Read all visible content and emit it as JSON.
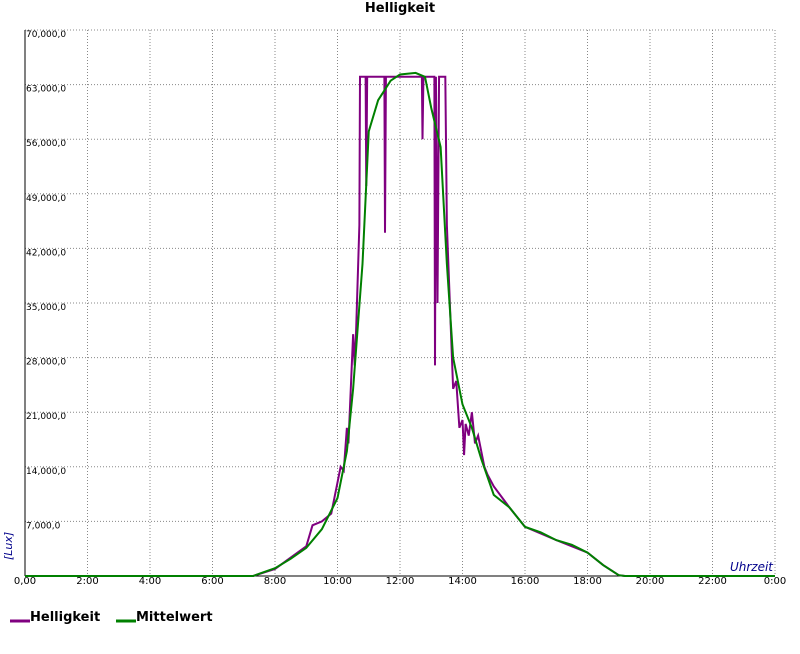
{
  "chart_data": {
    "type": "line",
    "title": "Helligkeit",
    "y_label": "[Lux]",
    "x_label": "Uhrzeit",
    "xlim": [
      0,
      24
    ],
    "ylim": [
      0,
      70000
    ],
    "grid": true,
    "xticks": [
      {
        "value": 0,
        "label": "0,00"
      },
      {
        "value": 2,
        "label": "2:00"
      },
      {
        "value": 4,
        "label": "4:00"
      },
      {
        "value": 6,
        "label": "6:00"
      },
      {
        "value": 8,
        "label": "8:00"
      },
      {
        "value": 10,
        "label": "10:00"
      },
      {
        "value": 12,
        "label": "12:00"
      },
      {
        "value": 14,
        "label": "14:00"
      },
      {
        "value": 16,
        "label": "16:00"
      },
      {
        "value": 18,
        "label": "18:00"
      },
      {
        "value": 20,
        "label": "20:00"
      },
      {
        "value": 22,
        "label": "22:00"
      },
      {
        "value": 24,
        "label": "0:00"
      }
    ],
    "yticks": [
      {
        "value": 7000,
        "label": "7,000,0"
      },
      {
        "value": 14000,
        "label": "14,000,0"
      },
      {
        "value": 21000,
        "label": "21,000,0"
      },
      {
        "value": 28000,
        "label": "28,000,0"
      },
      {
        "value": 35000,
        "label": "35,000,0"
      },
      {
        "value": 42000,
        "label": "42,000,0"
      },
      {
        "value": 49000,
        "label": "49,000,0"
      },
      {
        "value": 56000,
        "label": "56,000,0"
      },
      {
        "value": 63000,
        "label": "63,000,0"
      },
      {
        "value": 70000,
        "label": "70,000,0"
      }
    ],
    "series": [
      {
        "name": "Helligkeit",
        "color": "#800080",
        "x": [
          0,
          7.3,
          8,
          9,
          9.2,
          9.5,
          9.8,
          10.0,
          10.1,
          10.2,
          10.3,
          10.35,
          10.5,
          10.55,
          10.6,
          10.7,
          10.72,
          10.9,
          10.92,
          10.95,
          11.5,
          11.52,
          11.55,
          12.7,
          12.72,
          12.75,
          13.1,
          13.12,
          13.15,
          13.2,
          13.25,
          13.45,
          13.5,
          13.7,
          13.8,
          13.9,
          14.0,
          14.05,
          14.1,
          14.2,
          14.3,
          14.4,
          14.5,
          14.7,
          14.8,
          15.0,
          15.5,
          16,
          17,
          17.5,
          18,
          18.5,
          19,
          19.2,
          24
        ],
        "values": [
          0,
          0,
          900,
          3800,
          6500,
          7000,
          8000,
          12000,
          14000,
          13500,
          19000,
          17000,
          31000,
          27000,
          32000,
          45000,
          64000,
          64000,
          50000,
          64000,
          64000,
          44000,
          64000,
          64000,
          56000,
          64000,
          64000,
          27000,
          64000,
          35000,
          64000,
          64000,
          45000,
          24000,
          25000,
          19000,
          20000,
          15500,
          19500,
          18000,
          21000,
          17000,
          18000,
          14000,
          13000,
          11500,
          8800,
          6300,
          4600,
          3800,
          3000,
          1400,
          100,
          0,
          0
        ]
      },
      {
        "name": "Mittelwert",
        "color": "#008000",
        "x": [
          0,
          7.3,
          7.5,
          8.0,
          8.5,
          9.0,
          9.5,
          10.0,
          10.3,
          10.5,
          10.8,
          11.0,
          11.3,
          11.7,
          12.0,
          12.5,
          12.8,
          13.0,
          13.3,
          13.5,
          13.7,
          14.0,
          14.3,
          14.6,
          15.0,
          15.5,
          16.0,
          16.5,
          17.0,
          17.5,
          18.0,
          18.5,
          19.0,
          19.2,
          24
        ],
        "values": [
          0,
          0,
          300,
          1000,
          2200,
          3600,
          6000,
          10000,
          16000,
          24000,
          40000,
          57000,
          61000,
          63500,
          64300,
          64500,
          64000,
          60000,
          55000,
          40000,
          28000,
          22000,
          19000,
          15000,
          10400,
          8800,
          6300,
          5600,
          4600,
          4000,
          3000,
          1400,
          100,
          0,
          0
        ]
      }
    ]
  }
}
